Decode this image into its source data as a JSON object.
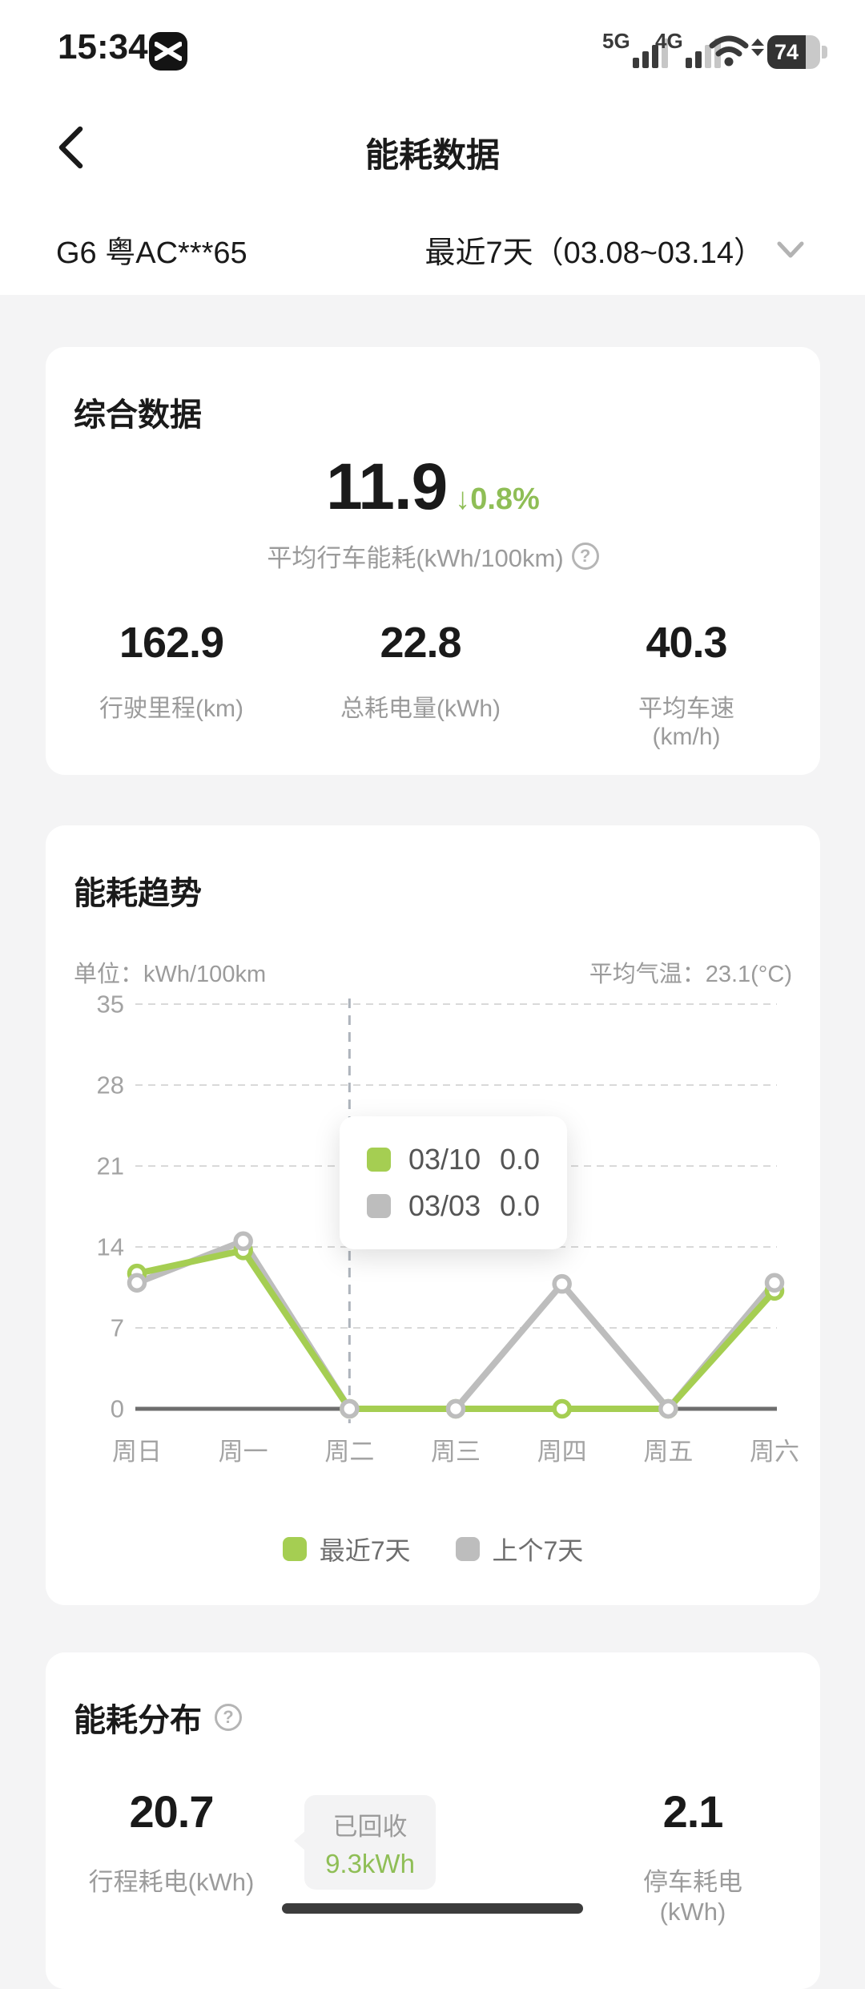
{
  "status_bar": {
    "time": "15:34",
    "network_primary": "5G",
    "network_secondary": "4G",
    "battery_percent": "74"
  },
  "header": {
    "title": "能耗数据"
  },
  "vehicle_bar": {
    "vehicle": "G6 粤AC***65",
    "date_range": "最近7天（03.08~03.14）"
  },
  "summary_card": {
    "title": "综合数据",
    "main_value": "11.9",
    "delta": "0.8%",
    "delta_direction": "down",
    "main_label": "平均行车能耗(kWh/100km)",
    "stats": [
      {
        "value": "162.9",
        "label": "行驶里程(km)"
      },
      {
        "value": "22.8",
        "label": "总耗电量(kWh)"
      },
      {
        "value": "40.3",
        "label": "平均车速(km/h)"
      }
    ]
  },
  "trend_card": {
    "title": "能耗趋势",
    "unit_label": "单位：kWh/100km",
    "temp_label": "平均气温：23.1(°C)",
    "tooltip": {
      "rows": [
        {
          "date": "03/10",
          "value": "0.0",
          "series": "最近7天"
        },
        {
          "date": "03/03",
          "value": "0.0",
          "series": "上个7天"
        }
      ]
    },
    "legend": [
      {
        "label": "最近7天",
        "color": "green"
      },
      {
        "label": "上个7天",
        "color": "gray"
      }
    ]
  },
  "chart_data": {
    "type": "line",
    "categories": [
      "周日",
      "周一",
      "周二",
      "周三",
      "周四",
      "周五",
      "周六"
    ],
    "series": [
      {
        "name": "最近7天",
        "color": "#A5CE52",
        "values": [
          11.7,
          13.7,
          0,
          0,
          0,
          0,
          10.2
        ]
      },
      {
        "name": "上个7天",
        "color": "#BDBDBD",
        "values": [
          10.9,
          14.5,
          0,
          0,
          10.8,
          0,
          10.9
        ]
      }
    ],
    "ylabel": "kWh/100km",
    "yticks": [
      0,
      7,
      14,
      21,
      28,
      35
    ],
    "ylim": [
      0,
      35
    ],
    "cursor_index": 2,
    "grid": "dashed-horizontal",
    "legend_position": "bottom"
  },
  "distribution_card": {
    "title": "能耗分布",
    "left_stat": {
      "value": "20.7",
      "label": "行程耗电(kWh)"
    },
    "right_stat": {
      "value": "2.1",
      "label": "停车耗电(kWh)"
    },
    "recovered": {
      "label": "已回收",
      "value": "9.3kWh"
    }
  },
  "colors": {
    "accent_green": "#8FBE56",
    "line_green": "#A5CE52",
    "line_gray": "#BDBDBD"
  }
}
